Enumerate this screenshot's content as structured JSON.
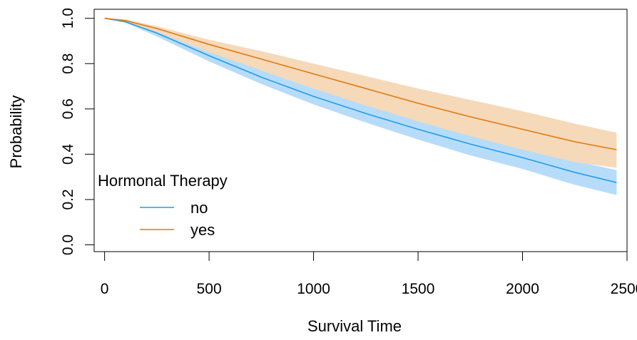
{
  "chart_data": {
    "type": "line",
    "title": "",
    "xlabel": "Survival Time",
    "ylabel": "Probability",
    "xlim": [
      -50,
      2500
    ],
    "ylim": [
      -0.03,
      1.04
    ],
    "x_ticks": [
      0,
      500,
      1000,
      1500,
      2000,
      2500
    ],
    "x_tick_labels": [
      "0",
      "500",
      "1000",
      "1500",
      "2000",
      "2500"
    ],
    "y_ticks": [
      0.0,
      0.2,
      0.4,
      0.6,
      0.8,
      1.0
    ],
    "y_tick_labels": [
      "0.0",
      "0.2",
      "0.4",
      "0.6",
      "0.8",
      "1.0"
    ],
    "grid": false,
    "legend": {
      "title": "Hormonal Therapy",
      "placement": "bottom-left",
      "entries": [
        "no",
        "yes"
      ]
    },
    "x": [
      0,
      100,
      250,
      500,
      750,
      1000,
      1250,
      1500,
      1750,
      2000,
      2250,
      2450
    ],
    "series": [
      {
        "name": "no",
        "color": "#1f9de8",
        "band_color": "#b7dcf9",
        "values": [
          1.0,
          0.985,
          0.935,
          0.835,
          0.74,
          0.655,
          0.58,
          0.51,
          0.445,
          0.385,
          0.32,
          0.275
        ],
        "lower": [
          1.0,
          0.98,
          0.92,
          0.81,
          0.71,
          0.62,
          0.54,
          0.465,
          0.395,
          0.335,
          0.265,
          0.22
        ],
        "upper": [
          1.0,
          0.99,
          0.95,
          0.86,
          0.77,
          0.69,
          0.62,
          0.55,
          0.485,
          0.43,
          0.37,
          0.33
        ]
      },
      {
        "name": "yes",
        "color": "#e07a10",
        "band_color": "#f5d9b9",
        "values": [
          1.0,
          0.99,
          0.955,
          0.885,
          0.82,
          0.755,
          0.69,
          0.625,
          0.565,
          0.51,
          0.455,
          0.42
        ],
        "lower": [
          1.0,
          0.985,
          0.94,
          0.85,
          0.77,
          0.69,
          0.615,
          0.545,
          0.48,
          0.42,
          0.365,
          0.34
        ],
        "upper": [
          1.0,
          0.995,
          0.965,
          0.905,
          0.855,
          0.8,
          0.745,
          0.69,
          0.64,
          0.59,
          0.535,
          0.495
        ]
      }
    ]
  }
}
